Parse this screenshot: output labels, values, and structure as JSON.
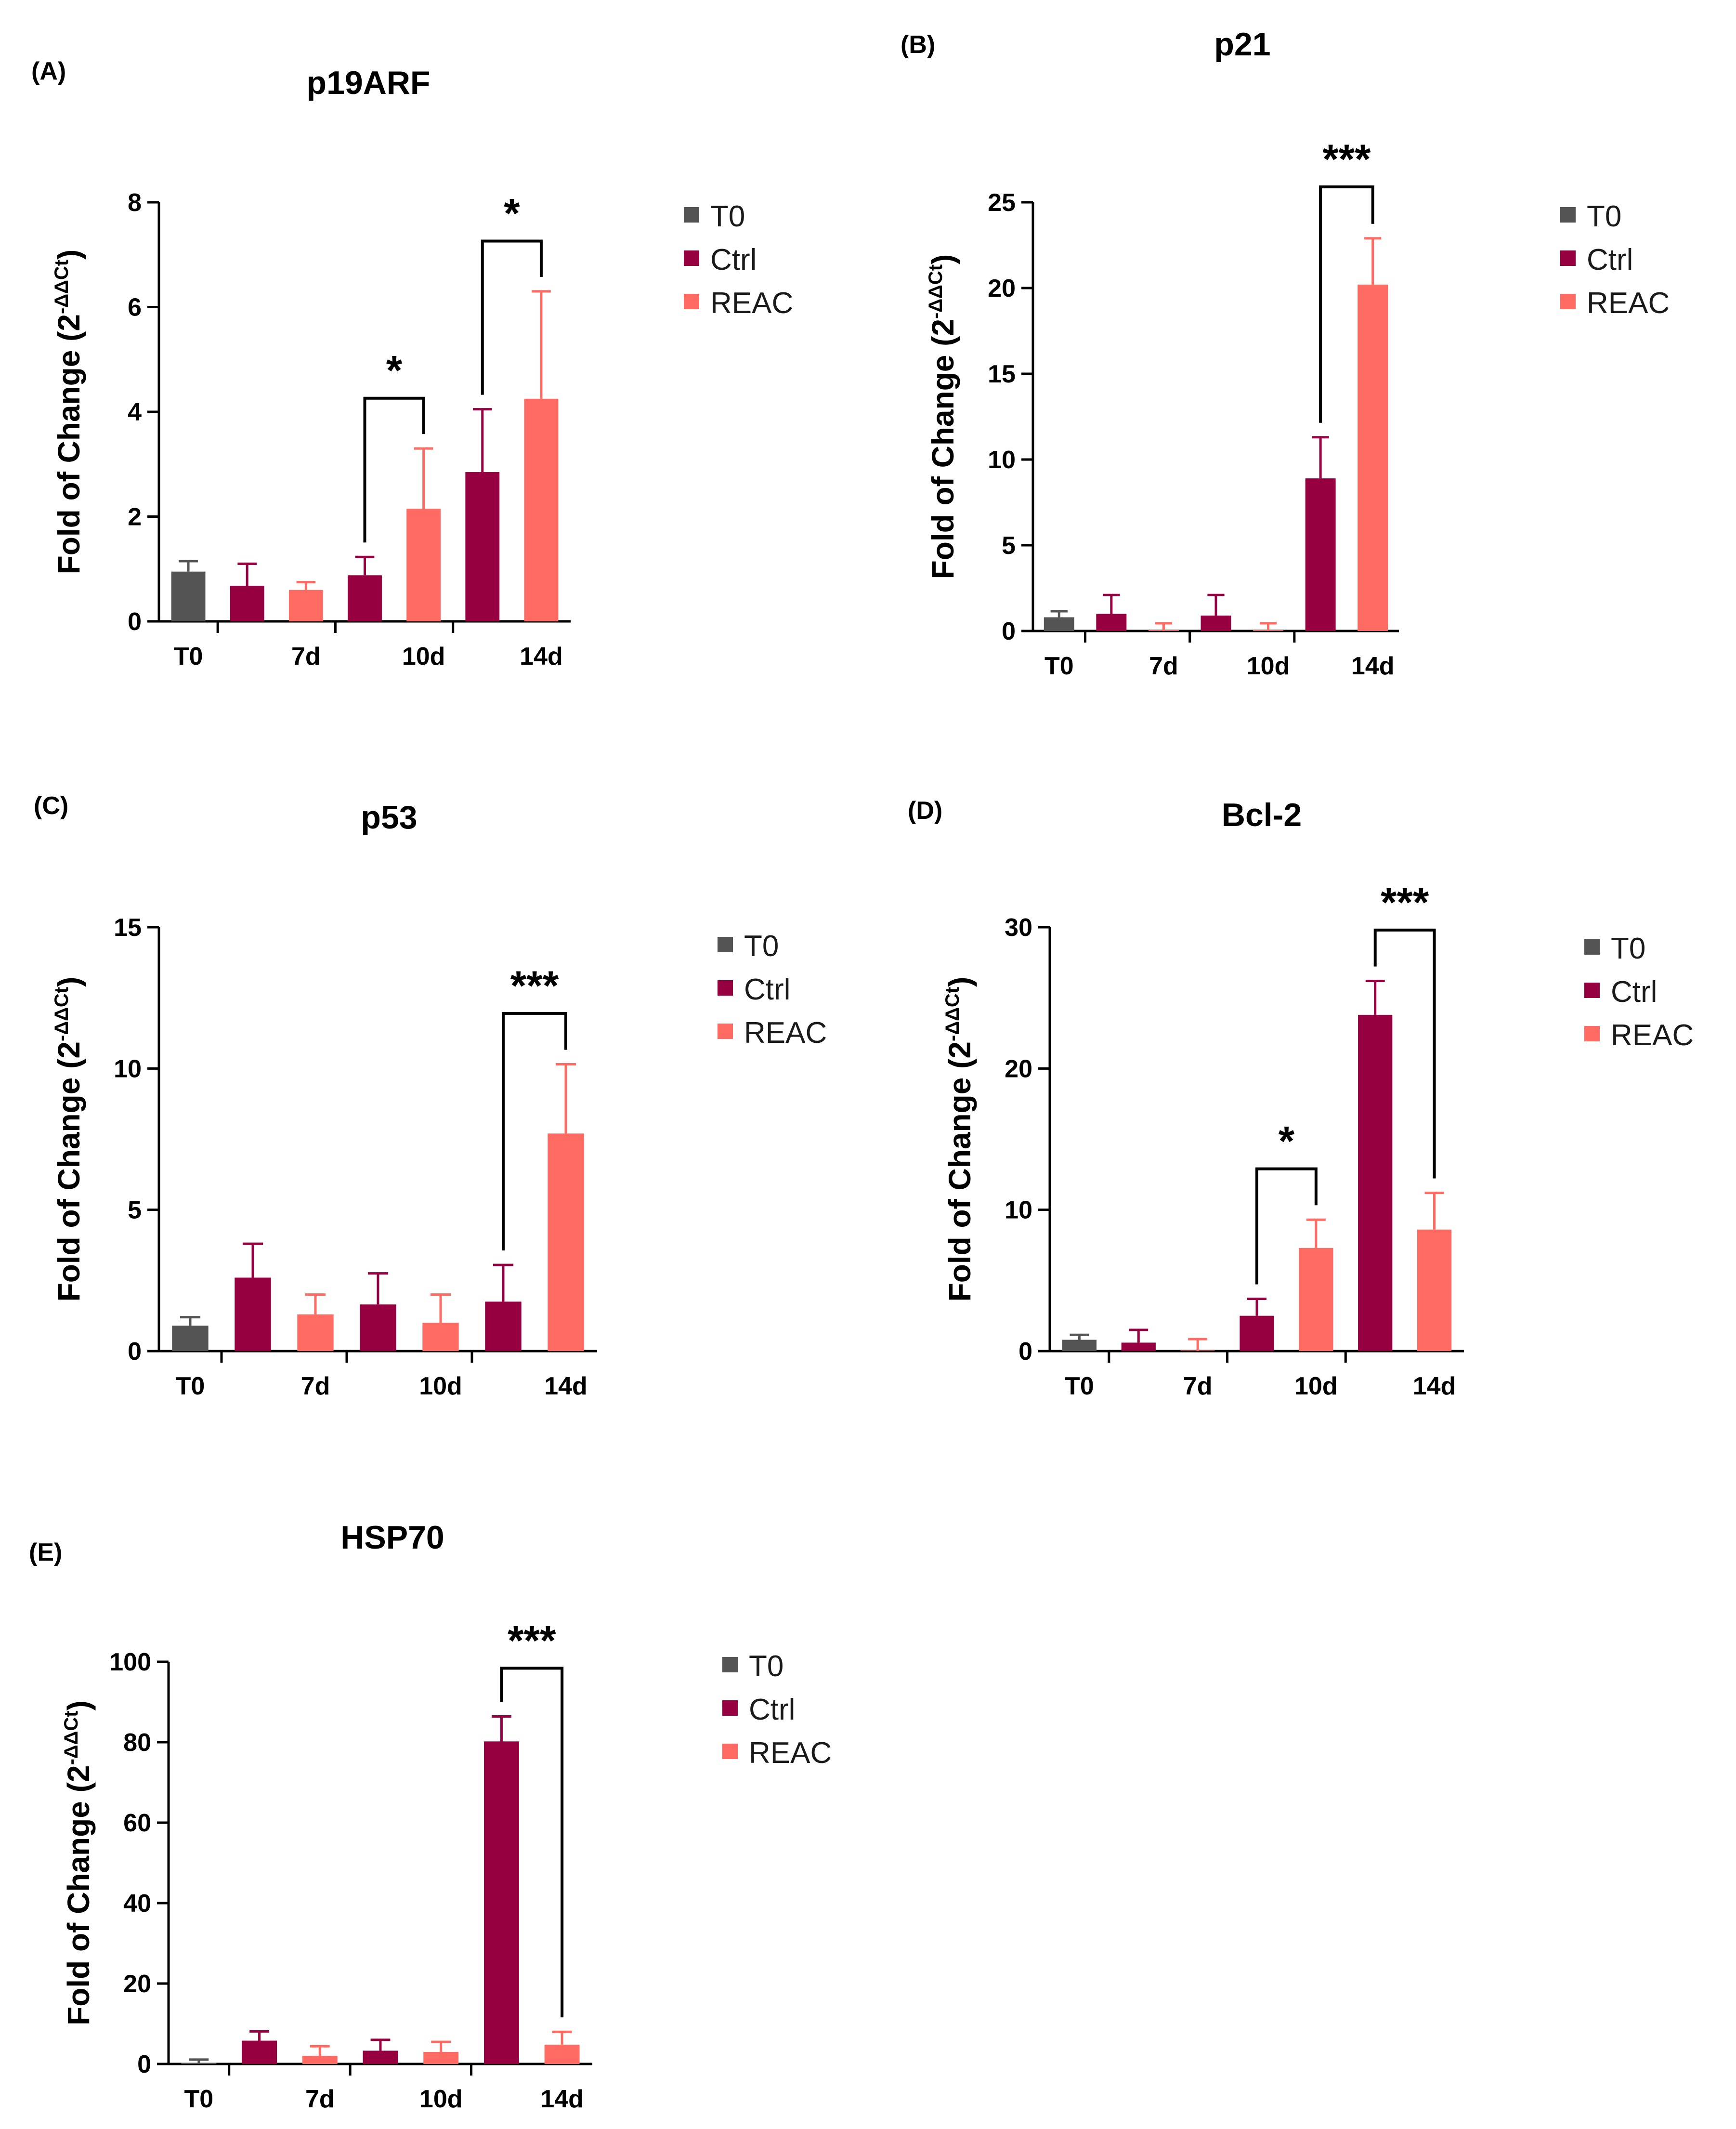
{
  "figure": {
    "y_axis_label": "Fold of Change (2",
    "y_axis_exponent": "-ΔΔCt",
    "y_axis_close": ")",
    "legend": [
      {
        "key": "T0",
        "label": "T0",
        "color": "#545454"
      },
      {
        "key": "Ctrl",
        "label": "Ctrl",
        "color": "#960040"
      },
      {
        "key": "REAC",
        "label": "REAC",
        "color": "#ff6b63"
      }
    ]
  },
  "chart_data": [
    {
      "panel": "(A)",
      "title": "p19ARF",
      "type": "bar",
      "ylim": [
        0,
        8
      ],
      "yticks": [
        "0",
        "2",
        "4",
        "6",
        "8"
      ],
      "ytick_values": [
        0,
        2,
        4,
        6,
        8
      ],
      "categories": [
        "T0",
        "7d",
        "10d",
        "14d"
      ],
      "bars": [
        {
          "group": "T0",
          "value": 0.95,
          "error": 0.2
        },
        {
          "group": "Ctrl",
          "value": 0.68,
          "error": 0.42
        },
        {
          "group": "REAC",
          "value": 0.6,
          "error": 0.15
        },
        {
          "group": "Ctrl",
          "value": 0.88,
          "error": 0.35
        },
        {
          "group": "REAC",
          "value": 2.15,
          "error": 1.15
        },
        {
          "group": "Ctrl",
          "value": 2.85,
          "error": 1.2
        },
        {
          "group": "REAC",
          "value": 4.25,
          "error": 2.05
        }
      ],
      "significance": [
        {
          "from": 3,
          "to": 4,
          "label": "*"
        },
        {
          "from": 5,
          "to": 6,
          "label": "*"
        }
      ]
    },
    {
      "panel": "(B)",
      "title": "p21",
      "type": "bar",
      "ylim": [
        0,
        25
      ],
      "yticks": [
        "0",
        "5",
        "10",
        "15",
        "20",
        "25"
      ],
      "ytick_values": [
        0,
        5,
        10,
        15,
        20,
        25
      ],
      "categories": [
        "T0",
        "7d",
        "10d",
        "14d"
      ],
      "bars": [
        {
          "group": "T0",
          "value": 0.8,
          "error": 0.35
        },
        {
          "group": "Ctrl",
          "value": 1.0,
          "error": 1.1
        },
        {
          "group": "REAC",
          "value": 0.05,
          "error": 0.4
        },
        {
          "group": "Ctrl",
          "value": 0.9,
          "error": 1.2
        },
        {
          "group": "REAC",
          "value": 0.05,
          "error": 0.4
        },
        {
          "group": "Ctrl",
          "value": 8.9,
          "error": 2.4
        },
        {
          "group": "REAC",
          "value": 20.2,
          "error": 2.7
        }
      ],
      "significance": [
        {
          "from": 5,
          "to": 6,
          "label": "***"
        }
      ]
    },
    {
      "panel": "(C)",
      "title": "p53",
      "type": "bar",
      "ylim": [
        0,
        15
      ],
      "yticks": [
        "0",
        "5",
        "10",
        "15"
      ],
      "ytick_values": [
        0,
        5,
        10,
        15
      ],
      "categories": [
        "T0",
        "7d",
        "10d",
        "14d"
      ],
      "bars": [
        {
          "group": "T0",
          "value": 0.9,
          "error": 0.3
        },
        {
          "group": "Ctrl",
          "value": 2.6,
          "error": 1.2
        },
        {
          "group": "REAC",
          "value": 1.3,
          "error": 0.7
        },
        {
          "group": "Ctrl",
          "value": 1.65,
          "error": 1.1
        },
        {
          "group": "REAC",
          "value": 1.0,
          "error": 1.0
        },
        {
          "group": "Ctrl",
          "value": 1.75,
          "error": 1.3
        },
        {
          "group": "REAC",
          "value": 7.7,
          "error": 2.45
        }
      ],
      "significance": [
        {
          "from": 5,
          "to": 6,
          "label": "***"
        }
      ]
    },
    {
      "panel": "(D)",
      "title": "Bcl-2",
      "type": "bar",
      "ylim": [
        0,
        30
      ],
      "yticks": [
        "0",
        "10",
        "20",
        "30"
      ],
      "ytick_values": [
        0,
        10,
        20,
        30
      ],
      "categories": [
        "T0",
        "7d",
        "10d",
        "14d"
      ],
      "bars": [
        {
          "group": "T0",
          "value": 0.8,
          "error": 0.35
        },
        {
          "group": "Ctrl",
          "value": 0.6,
          "error": 0.9
        },
        {
          "group": "REAC",
          "value": 0.05,
          "error": 0.8
        },
        {
          "group": "Ctrl",
          "value": 2.5,
          "error": 1.2
        },
        {
          "group": "REAC",
          "value": 7.3,
          "error": 2.0
        },
        {
          "group": "Ctrl",
          "value": 23.8,
          "error": 2.4
        },
        {
          "group": "REAC",
          "value": 8.6,
          "error": 2.6
        }
      ],
      "significance": [
        {
          "from": 3,
          "to": 4,
          "label": "*"
        },
        {
          "from": 5,
          "to": 6,
          "label": "***"
        }
      ]
    },
    {
      "panel": "(E)",
      "title": "HSP70",
      "type": "bar",
      "ylim": [
        0,
        100
      ],
      "yticks": [
        "0",
        "20",
        "40",
        "60",
        "80",
        "100"
      ],
      "ytick_values": [
        0,
        20,
        40,
        60,
        80,
        100
      ],
      "categories": [
        "T0",
        "7d",
        "10d",
        "14d"
      ],
      "bars": [
        {
          "group": "T0",
          "value": 0.3,
          "error": 0.8
        },
        {
          "group": "Ctrl",
          "value": 5.8,
          "error": 2.3
        },
        {
          "group": "REAC",
          "value": 2.0,
          "error": 2.4
        },
        {
          "group": "Ctrl",
          "value": 3.3,
          "error": 2.7
        },
        {
          "group": "REAC",
          "value": 3.0,
          "error": 2.5
        },
        {
          "group": "Ctrl",
          "value": 80.2,
          "error": 6.2
        },
        {
          "group": "REAC",
          "value": 4.8,
          "error": 3.2
        }
      ],
      "significance": [
        {
          "from": 5,
          "to": 6,
          "label": "***"
        }
      ]
    }
  ]
}
